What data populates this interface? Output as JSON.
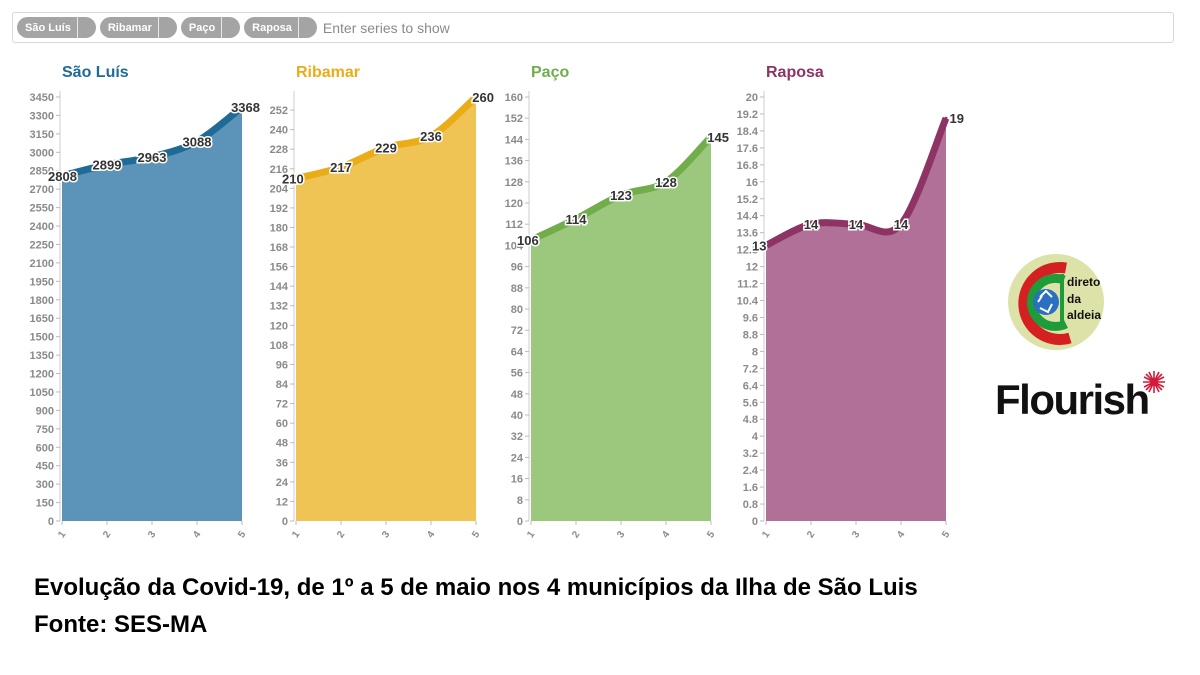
{
  "filter": {
    "chips": [
      "São Luís",
      "Ribamar",
      "Paço",
      "Raposa"
    ],
    "placeholder": "Enter series to show"
  },
  "colors": {
    "sao_luis_line": "#1f6a96",
    "sao_luis_fill": "#5b94b8",
    "ribamar_line": "#eaad17",
    "ribamar_fill": "#f0c454",
    "paco_line": "#72ad4c",
    "paco_fill": "#9cc87e",
    "raposa_line": "#8e3465",
    "raposa_fill": "#b07097"
  },
  "chart_data": [
    {
      "type": "area",
      "title": "São Luís",
      "x": [
        1,
        2,
        3,
        4,
        5
      ],
      "series": [
        {
          "values": [
            2808,
            2899,
            2963,
            3088,
            3368
          ]
        }
      ],
      "ylim": [
        0,
        3450
      ],
      "y_ticks": [
        0,
        150,
        300,
        450,
        600,
        750,
        900,
        1050,
        1200,
        1350,
        1500,
        1650,
        1800,
        1950,
        2100,
        2250,
        2400,
        2550,
        2700,
        2850,
        3000,
        3150,
        3300,
        3450
      ],
      "data_labels": [
        "2808",
        "2899",
        "2963",
        "3088",
        "3368"
      ],
      "grid": false
    },
    {
      "type": "area",
      "title": "Ribamar",
      "x": [
        1,
        2,
        3,
        4,
        5
      ],
      "series": [
        {
          "values": [
            210,
            217,
            229,
            236,
            260
          ]
        }
      ],
      "ylim": [
        0,
        260
      ],
      "y_ticks": [
        0,
        12,
        24,
        36,
        48,
        60,
        72,
        84,
        96,
        108,
        120,
        132,
        144,
        156,
        168,
        180,
        192,
        204,
        216,
        228,
        240,
        252
      ],
      "data_labels": [
        "210",
        "217",
        "229",
        "236",
        "260"
      ],
      "grid": false
    },
    {
      "type": "area",
      "title": "Paço",
      "x": [
        1,
        2,
        3,
        4,
        5
      ],
      "series": [
        {
          "values": [
            106,
            114,
            123,
            128,
            145
          ]
        }
      ],
      "ylim": [
        0,
        160
      ],
      "y_ticks": [
        0,
        8,
        16,
        24,
        32,
        40,
        48,
        56,
        64,
        72,
        80,
        88,
        96,
        104,
        112,
        120,
        128,
        136,
        144,
        152,
        160
      ],
      "data_labels": [
        "106",
        "114",
        "123",
        "128",
        "145"
      ],
      "grid": false
    },
    {
      "type": "area",
      "title": "Raposa",
      "x": [
        1,
        2,
        3,
        4,
        5
      ],
      "series": [
        {
          "values": [
            13,
            14,
            14,
            14,
            19
          ]
        }
      ],
      "ylim": [
        0,
        20
      ],
      "y_ticks": [
        0,
        0.8,
        1.6,
        2.4,
        3.2,
        4,
        4.8,
        5.6,
        6.4,
        7.2,
        8,
        8.8,
        9.6,
        10.4,
        11.2,
        12,
        12.8,
        13.6,
        14.4,
        15.2,
        16,
        16.8,
        17.6,
        18.4,
        19.2,
        20
      ],
      "data_labels": [
        "13",
        "14",
        "14",
        "14",
        "19"
      ],
      "grid": false
    }
  ],
  "logo": {
    "line1": "direto",
    "line2": "da",
    "line3": "aldeia"
  },
  "brand": {
    "name": "Flourish"
  },
  "caption": {
    "line1": "Evolução da Covid-19, de 1º a 5 de maio nos 4 municípios da Ilha de São Luis",
    "line2": "Fonte: SES-MA"
  }
}
